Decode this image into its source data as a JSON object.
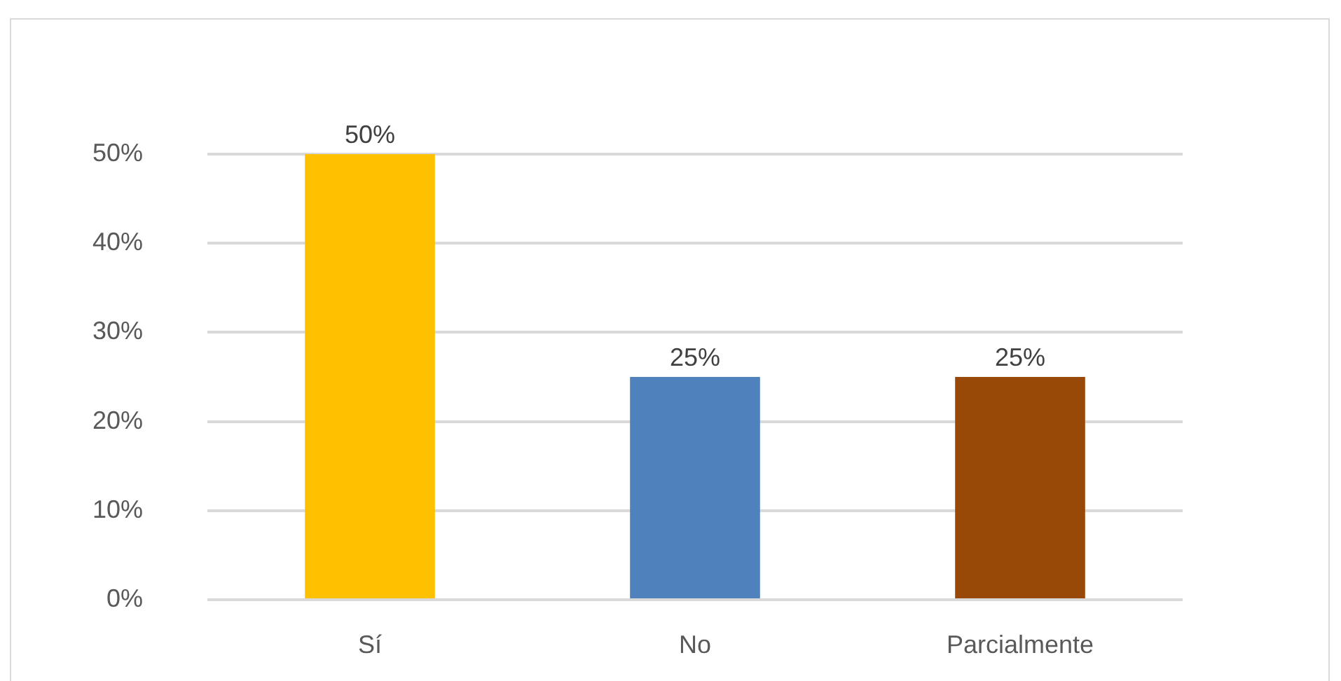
{
  "chart_data": {
    "type": "bar",
    "categories": [
      "Sí",
      "No",
      "Parcialmente"
    ],
    "values": [
      50,
      25,
      25
    ],
    "colors": [
      "#ffc000",
      "#4f81bd",
      "#984807"
    ],
    "value_labels": [
      "50%",
      "25%",
      "25%"
    ],
    "ylim": [
      0,
      50
    ],
    "yticks": [
      {
        "value": 0,
        "label": "0%"
      },
      {
        "value": 10,
        "label": "10%"
      },
      {
        "value": 20,
        "label": "20%"
      },
      {
        "value": 30,
        "label": "30%"
      },
      {
        "value": 40,
        "label": "40%"
      },
      {
        "value": 50,
        "label": "50%"
      }
    ],
    "grid": "y"
  }
}
